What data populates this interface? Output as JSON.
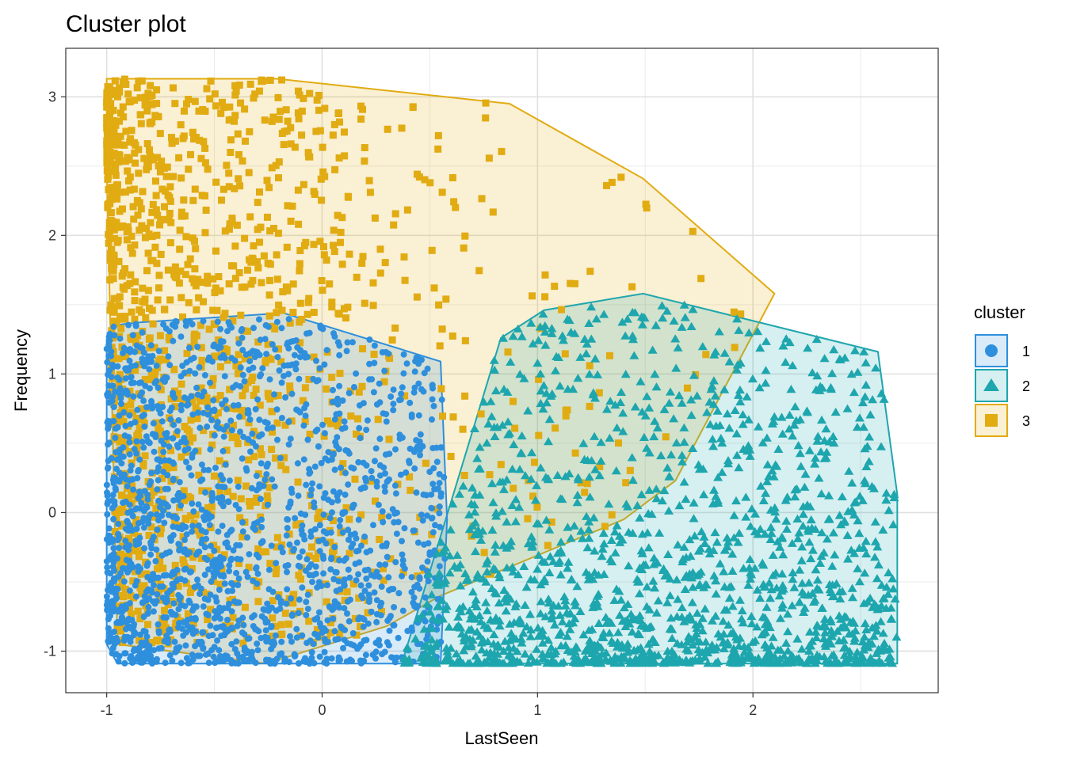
{
  "chart_data": {
    "type": "scatter",
    "title": "Cluster plot",
    "xlabel": "LastSeen",
    "ylabel": "Frequency",
    "xlim": [
      -1.19,
      2.86
    ],
    "ylim": [
      -1.3,
      3.35
    ],
    "x_ticks": [
      -1,
      0,
      1,
      2
    ],
    "x_tick_labels": [
      "-1",
      "0",
      "1",
      "2"
    ],
    "y_ticks": [
      -1,
      0,
      1,
      2,
      3
    ],
    "y_tick_labels": [
      "-1",
      "0",
      "1",
      "2",
      "3"
    ],
    "grid": true,
    "legend": {
      "title": "cluster",
      "placement": "right"
    },
    "series": [
      {
        "name": "1",
        "marker": "circle",
        "color": "#2E8FDD",
        "centroid": [
          -0.49,
          -0.37
        ],
        "hull": [
          [
            -1.0,
            1.25
          ],
          [
            -0.97,
            1.35
          ],
          [
            -0.87,
            1.37
          ],
          [
            -0.18,
            1.44
          ],
          [
            0.55,
            1.09
          ],
          [
            0.58,
            -0.05
          ],
          [
            0.55,
            -1.09
          ],
          [
            -0.95,
            -1.09
          ],
          [
            -1.0,
            -0.95
          ]
        ],
        "points_drawn_from": "centroid region, approx. 1700 points"
      },
      {
        "name": "2",
        "marker": "triangle",
        "color": "#1EA6AE",
        "hull": [
          [
            0.37,
            -1.09
          ],
          [
            0.83,
            1.26
          ],
          [
            1.03,
            1.46
          ],
          [
            1.49,
            1.58
          ],
          [
            2.58,
            1.16
          ],
          [
            2.67,
            0.13
          ],
          [
            2.67,
            -1.09
          ]
        ],
        "points_drawn_from": "hull region, approx. 1500 points"
      },
      {
        "name": "3",
        "marker": "square",
        "color": "#E1AB12",
        "hull": [
          [
            -1.0,
            3.13
          ],
          [
            -0.21,
            3.13
          ],
          [
            0.87,
            2.95
          ],
          [
            1.49,
            2.41
          ],
          [
            2.1,
            1.58
          ],
          [
            1.64,
            0.23
          ],
          [
            1.4,
            -0.05
          ],
          [
            0.55,
            -0.6
          ],
          [
            0.3,
            -0.82
          ],
          [
            -0.26,
            -1.09
          ],
          [
            -0.95,
            -0.95
          ],
          [
            -1.0,
            2.5
          ]
        ],
        "points_drawn_from": "hull region, approx. 1400 points"
      }
    ]
  }
}
